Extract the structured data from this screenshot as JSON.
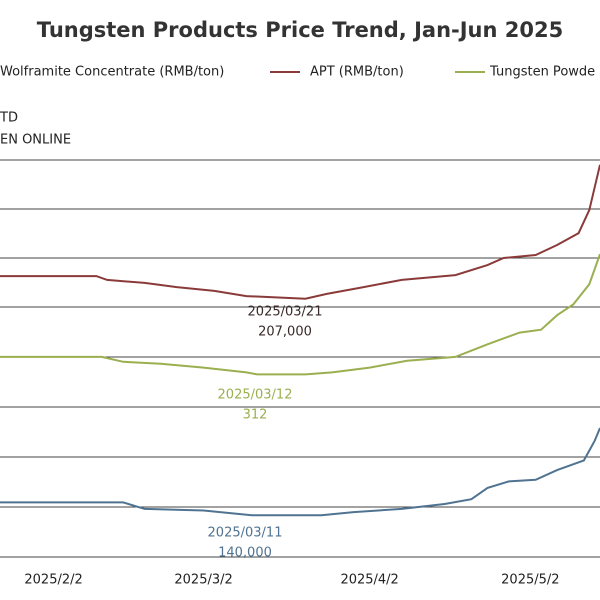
{
  "chart_data": {
    "type": "line",
    "title": "Tungsten Products Price Trend, Jan-Jun 2025",
    "source_lines": [
      "TD",
      "EN ONLINE"
    ],
    "xlim": [
      "2025/1/23",
      "2025/5/15"
    ],
    "xticks": [
      "2025/2/2",
      "2025/3/2",
      "2025/4/2",
      "2025/5/2"
    ],
    "ylim": [
      120000,
      270000
    ],
    "y2lim": [
      100,
      600
    ],
    "grid": true,
    "series": [
      {
        "name": "Wolframite Concentrate (RMB/ton)",
        "color": "#4f7391",
        "x": [
          "2025/1/23",
          "2025/2/15",
          "2025/2/19",
          "2025/3/2",
          "2025/3/11",
          "2025/3/24",
          "2025/3/30",
          "2025/4/8",
          "2025/4/16",
          "2025/4/21",
          "2025/4/24",
          "2025/4/28",
          "2025/5/3",
          "2025/5/7",
          "2025/5/12",
          "2025/5/14",
          "2025/5/15"
        ],
        "values": [
          144000,
          144000,
          142000,
          141500,
          140000,
          140000,
          141000,
          142000,
          143500,
          145000,
          148500,
          150500,
          151000,
          154000,
          157000,
          163000,
          167000
        ]
      },
      {
        "name": "APT (RMB/ton)",
        "color": "#8b3a3a",
        "x": [
          "2025/1/23",
          "2025/2/10",
          "2025/2/12",
          "2025/2/19",
          "2025/2/25",
          "2025/3/4",
          "2025/3/10",
          "2025/3/17",
          "2025/3/21",
          "2025/3/25",
          "2025/3/31",
          "2025/4/8",
          "2025/4/18",
          "2025/4/24",
          "2025/4/27",
          "2025/5/3",
          "2025/5/7",
          "2025/5/11",
          "2025/5/13",
          "2025/5/15"
        ],
        "values": [
          214000,
          214000,
          212800,
          211900,
          210600,
          209400,
          207800,
          207300,
          207000,
          208500,
          210300,
          212800,
          214300,
          217400,
          219600,
          220500,
          223600,
          227300,
          234400,
          248400
        ]
      },
      {
        "name": "Tungsten Powde",
        "color": "#9aaf4f",
        "axis": "y2",
        "x": [
          "2025/1/23",
          "2025/2/11",
          "2025/2/15",
          "2025/2/22",
          "2025/3/2",
          "2025/3/10",
          "2025/3/12",
          "2025/3/21",
          "2025/3/26",
          "2025/4/2",
          "2025/4/9",
          "2025/4/18",
          "2025/4/24",
          "2025/4/30",
          "2025/5/4",
          "2025/5/7",
          "2025/5/10",
          "2025/5/13",
          "2025/5/15"
        ],
        "values": [
          330,
          330,
          325,
          323,
          319,
          314,
          312,
          312,
          314,
          319,
          326,
          330,
          343,
          355,
          358,
          373,
          384,
          405,
          436
        ]
      }
    ],
    "annotations": [
      {
        "series": "APT (RMB/ton)",
        "date": "2025/03/21",
        "value": {
          "value": 207000,
          "label": "207,000"
        }
      },
      {
        "series": "Tungsten Powde",
        "date": "2025/03/12",
        "value": 312
      },
      {
        "series": "Wolframite Concentrate (RMB/ton)",
        "date": "2025/03/11",
        "value": {
          "value": 140000,
          "label": "140,000"
        }
      }
    ]
  }
}
